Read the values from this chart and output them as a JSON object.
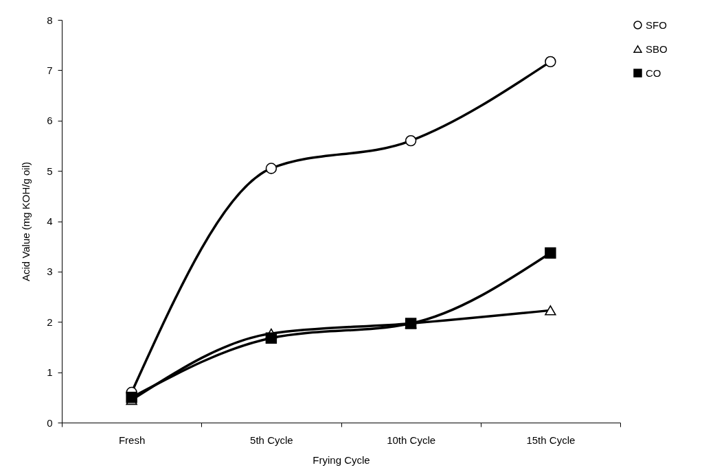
{
  "chart_data": {
    "type": "line",
    "xlabel": "Frying Cycle",
    "ylabel": "Acid Value (mg KOH/g oil)",
    "categories": [
      "Fresh",
      "5th Cycle",
      "10th Cycle",
      "15th Cycle"
    ],
    "series": [
      {
        "name": "SFO",
        "color": "#000000",
        "marker": "circle",
        "values": [
          0.6,
          5.05,
          5.6,
          7.17
        ]
      },
      {
        "name": "SBO",
        "color": "#000000",
        "marker": "triangle",
        "values": [
          0.45,
          1.77,
          1.97,
          2.23
        ]
      },
      {
        "name": "CO",
        "color": "#000000",
        "marker": "square",
        "values": [
          0.5,
          1.68,
          1.97,
          3.37
        ]
      }
    ],
    "ylim": [
      0,
      8
    ],
    "yticks": [
      0,
      1,
      2,
      3,
      4,
      5,
      6,
      7,
      8
    ],
    "grid": false,
    "legend": "right",
    "line_style": "solid"
  }
}
